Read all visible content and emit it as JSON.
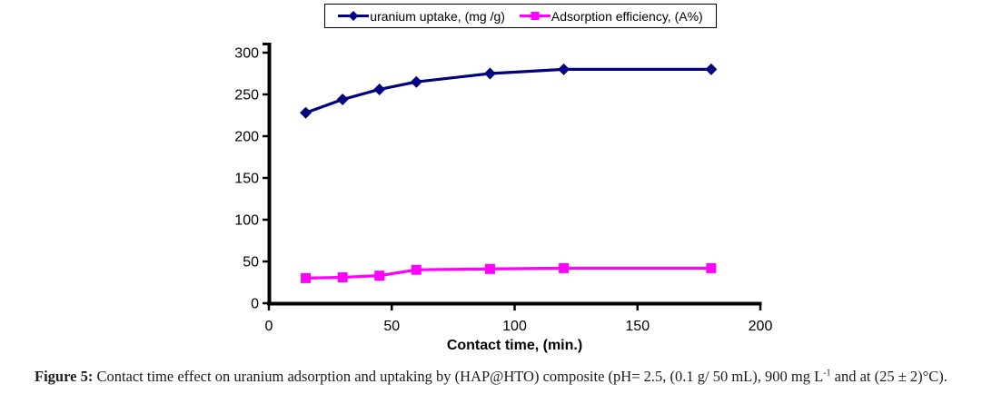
{
  "legend": {
    "items": [
      {
        "label": "uranium uptake, (mg /g)",
        "color": "#000080",
        "marker": "diamond"
      },
      {
        "label": "Adsorption efficiency, (A%)",
        "color": "#FF00FF",
        "marker": "square"
      }
    ]
  },
  "chart_data": {
    "type": "line",
    "x": [
      15,
      30,
      45,
      60,
      90,
      120,
      180
    ],
    "series": [
      {
        "name": "uranium uptake, (mg /g)",
        "values": [
          228,
          244,
          256,
          265,
          275,
          280,
          280
        ],
        "color": "#000080",
        "marker": "diamond"
      },
      {
        "name": "Adsorption efficiency, (A%)",
        "values": [
          30,
          31,
          33,
          40,
          41,
          42,
          42
        ],
        "color": "#FF00FF",
        "marker": "square"
      }
    ],
    "title": "",
    "xlabel": "Contact time, (min.)",
    "ylabel": "",
    "xlim": [
      0,
      200
    ],
    "ylim": [
      0,
      300
    ],
    "xticks": [
      0,
      50,
      100,
      150,
      200
    ],
    "yticks": [
      0,
      50,
      100,
      150,
      200,
      250,
      300
    ],
    "grid": "off",
    "legend_position": "top"
  },
  "caption": {
    "label": "Figure 5:",
    "body": " Contact time effect on uranium adsorption and uptaking by (HAP@HTO) composite (pH= 2.5, (0.1 g/ 50 mL), 900 mg L",
    "superscript": "-1",
    "tail": " and at (25 ± 2)°C)."
  },
  "colors": {
    "axis": "#000000",
    "tick_label": "#000000",
    "background": "#ffffff"
  }
}
